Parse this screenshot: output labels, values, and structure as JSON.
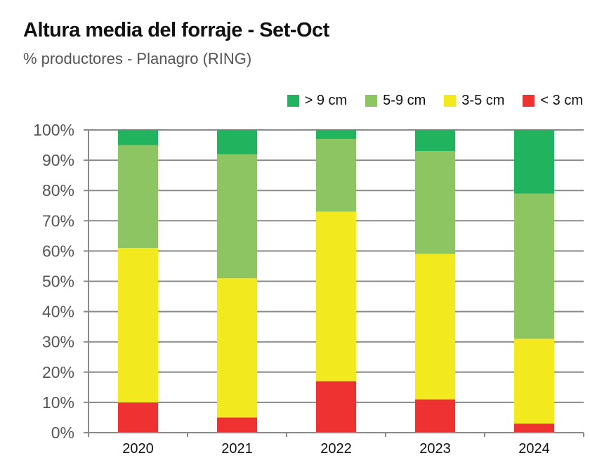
{
  "title": "Altura media del forraje - Set-Oct",
  "subtitle": "% productores - Planagro (RING)",
  "chart_data": {
    "type": "bar",
    "stacked": true,
    "title": "Altura media del forraje - Set-Oct",
    "subtitle": "% productores - Planagro (RING)",
    "xlabel": "",
    "ylabel": "",
    "ylim": [
      0,
      100
    ],
    "yticks": [
      "0%",
      "10%",
      "20%",
      "30%",
      "40%",
      "50%",
      "60%",
      "70%",
      "80%",
      "90%",
      "100%"
    ],
    "grid": true,
    "legend_position": "top-right",
    "categories": [
      "2020",
      "2021",
      "2022",
      "2023",
      "2024"
    ],
    "series": [
      {
        "name": "< 3 cm",
        "color": "#ee3131",
        "values": [
          10,
          5,
          17,
          11,
          3
        ]
      },
      {
        "name": "3-5 cm",
        "color": "#f2e91e",
        "values": [
          51,
          46,
          56,
          48,
          28
        ]
      },
      {
        "name": "5-9 cm",
        "color": "#8dc563",
        "values": [
          34,
          41,
          24,
          34,
          48
        ]
      },
      {
        "name": "> 9 cm",
        "color": "#22b35e",
        "values": [
          5,
          8,
          3,
          7,
          21
        ]
      }
    ],
    "legend": [
      "> 9 cm",
      "5-9 cm",
      "3-5 cm",
      "< 3 cm"
    ]
  }
}
